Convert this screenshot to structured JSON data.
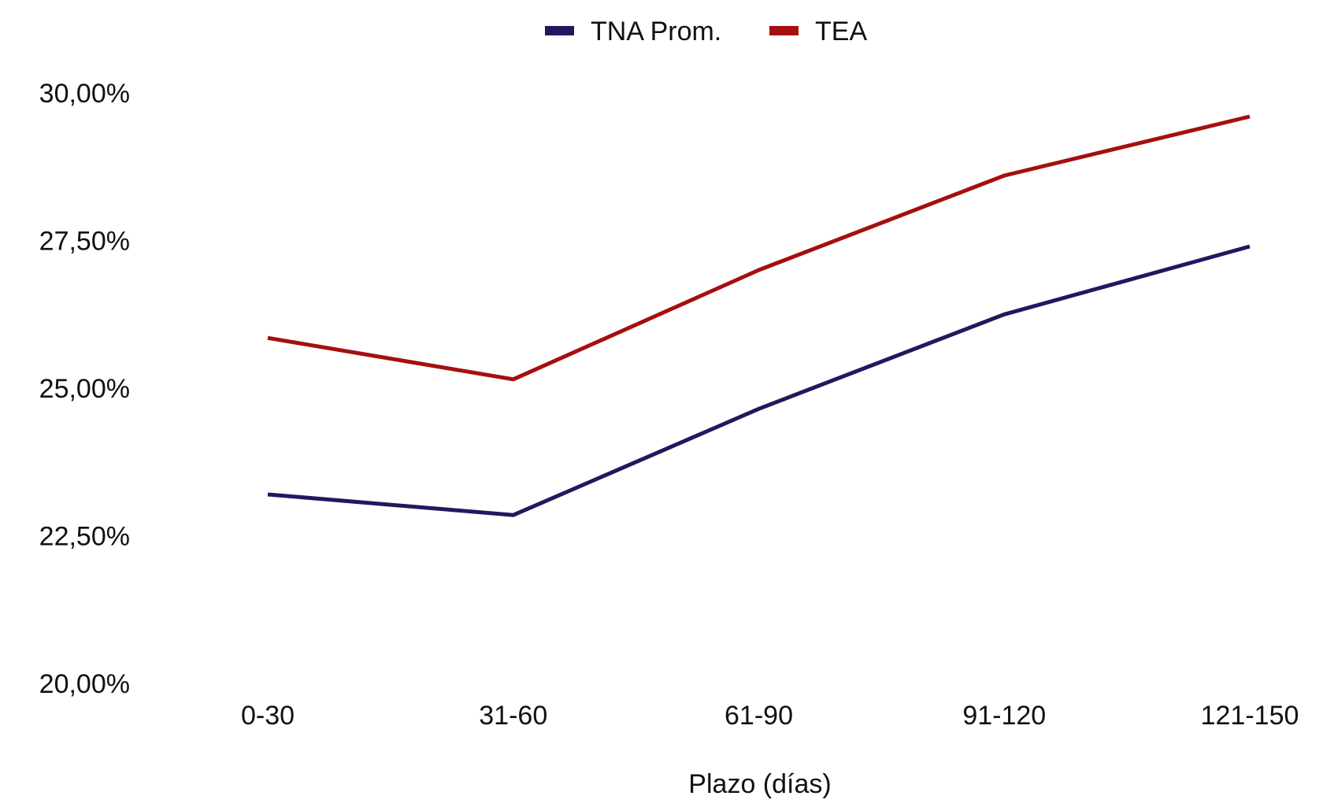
{
  "chart_data": {
    "type": "line",
    "title": "",
    "xlabel": "Plazo (días)",
    "ylabel": "",
    "categories": [
      "0-30",
      "31-60",
      "61-90",
      "91-120",
      "121-150"
    ],
    "series": [
      {
        "name": "TNA Prom.",
        "color": "#1f1a5e",
        "values": [
          23.2,
          22.85,
          24.65,
          26.25,
          27.4
        ]
      },
      {
        "name": "TEA",
        "color": "#a50f0f",
        "values": [
          25.85,
          25.15,
          27.0,
          28.6,
          29.6
        ]
      }
    ],
    "ylim": [
      20,
      30
    ],
    "yticks": [
      "20,00%",
      "22,50%",
      "25,00%",
      "27,50%",
      "30,00%"
    ],
    "ytick_values": [
      20,
      22.5,
      25,
      27.5,
      30
    ],
    "grid": false,
    "legend_position": "top-center"
  }
}
